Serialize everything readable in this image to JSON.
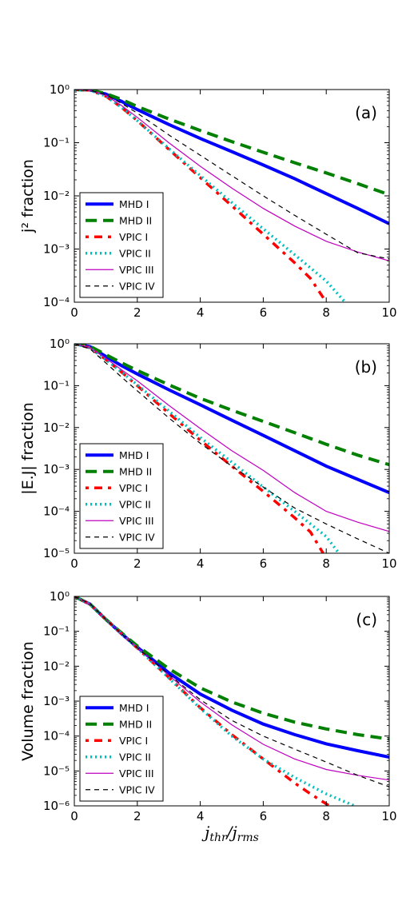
{
  "chart_data": [
    {
      "type": "line",
      "panel_label": "(a)",
      "ylabel": "j² fraction",
      "xlabel": "",
      "xlim": [
        0,
        10
      ],
      "ylim_log10": [
        -4,
        0
      ],
      "y_scale": "log",
      "x_ticks": [
        "0",
        "2",
        "4",
        "6",
        "8",
        "10"
      ],
      "y_ticks": [
        "10⁻⁴",
        "10⁻³",
        "10⁻²",
        "10⁻¹",
        "10⁰"
      ],
      "legend_position": "lower-left",
      "series": [
        {
          "name": "MHD I",
          "color": "#0000ff",
          "style": "solid",
          "width": 4,
          "x": [
            0,
            0.5,
            1,
            1.5,
            2,
            3,
            4,
            5,
            6,
            7,
            8,
            9,
            10
          ],
          "y": [
            1,
            0.98,
            0.82,
            0.6,
            0.42,
            0.22,
            0.12,
            0.068,
            0.038,
            0.021,
            0.011,
            0.0058,
            0.003
          ]
        },
        {
          "name": "MHD II",
          "color": "#008000",
          "style": "dashed",
          "width": 4,
          "x": [
            0,
            0.5,
            1,
            1.5,
            2,
            3,
            4,
            5,
            6,
            7,
            8,
            9,
            10
          ],
          "y": [
            1,
            0.98,
            0.84,
            0.65,
            0.48,
            0.28,
            0.17,
            0.105,
            0.066,
            0.042,
            0.027,
            0.017,
            0.0105
          ]
        },
        {
          "name": "VPIC I",
          "color": "#ff0000",
          "style": "dashdot",
          "width": 3.5,
          "x": [
            0,
            0.5,
            1,
            1.5,
            2,
            3,
            4,
            5,
            6,
            7,
            7.5,
            8
          ],
          "y": [
            1,
            0.97,
            0.75,
            0.46,
            0.26,
            0.075,
            0.022,
            0.0065,
            0.0019,
            0.00055,
            0.00028,
            0.0001
          ]
        },
        {
          "name": "VPIC II",
          "color": "#00bfbf",
          "style": "dotted",
          "width": 3.5,
          "x": [
            0,
            0.5,
            1,
            1.5,
            2,
            3,
            4,
            5,
            6,
            7,
            8,
            8.6
          ],
          "y": [
            1,
            0.97,
            0.75,
            0.46,
            0.26,
            0.078,
            0.024,
            0.0075,
            0.0024,
            0.00078,
            0.00025,
            0.0001
          ]
        },
        {
          "name": "VPIC III",
          "color": "#bf00bf",
          "style": "solid",
          "width": 1.2,
          "x": [
            0,
            0.5,
            1,
            1.5,
            2,
            3,
            4,
            5,
            6,
            7,
            8,
            9,
            10
          ],
          "y": [
            1,
            0.97,
            0.78,
            0.5,
            0.3,
            0.1,
            0.036,
            0.014,
            0.0058,
            0.0027,
            0.0014,
            0.00088,
            0.0006
          ]
        },
        {
          "name": "VPIC IV",
          "color": "#000000",
          "style": "dashed-thin",
          "width": 1.2,
          "x": [
            0,
            0.5,
            1,
            1.5,
            2,
            3,
            4,
            5,
            6,
            7,
            8,
            9,
            10
          ],
          "y": [
            1,
            0.97,
            0.8,
            0.55,
            0.36,
            0.14,
            0.058,
            0.024,
            0.01,
            0.0043,
            0.0019,
            0.00085,
            0.00065
          ]
        }
      ]
    },
    {
      "type": "line",
      "panel_label": "(b)",
      "ylabel": "|E.J| fraction",
      "xlabel": "",
      "xlim": [
        0,
        10
      ],
      "ylim_log10": [
        -5,
        0
      ],
      "y_scale": "log",
      "x_ticks": [
        "0",
        "2",
        "4",
        "6",
        "8",
        "10"
      ],
      "y_ticks": [
        "10⁻⁵",
        "10⁻⁴",
        "10⁻³",
        "10⁻²",
        "10⁻¹",
        "10⁰"
      ],
      "legend_position": "lower-left",
      "series": [
        {
          "name": "MHD I",
          "color": "#0000ff",
          "style": "solid",
          "width": 4,
          "x": [
            0,
            0.5,
            1,
            1.5,
            2,
            3,
            4,
            5,
            6,
            7,
            8,
            9,
            10
          ],
          "y": [
            1,
            0.85,
            0.5,
            0.3,
            0.19,
            0.08,
            0.035,
            0.015,
            0.0065,
            0.0028,
            0.0012,
            0.00058,
            0.00028
          ]
        },
        {
          "name": "MHD II",
          "color": "#008000",
          "style": "dashed",
          "width": 4,
          "x": [
            0,
            0.5,
            1,
            1.5,
            2,
            3,
            4,
            5,
            6,
            7,
            8,
            9,
            10
          ],
          "y": [
            1,
            0.87,
            0.55,
            0.35,
            0.23,
            0.105,
            0.05,
            0.026,
            0.014,
            0.0075,
            0.004,
            0.0022,
            0.0013
          ]
        },
        {
          "name": "VPIC I",
          "color": "#ff0000",
          "style": "dashdot",
          "width": 3.5,
          "x": [
            0,
            0.5,
            1,
            1.5,
            2,
            3,
            4,
            5,
            6,
            7,
            7.5,
            7.9
          ],
          "y": [
            1,
            0.8,
            0.42,
            0.21,
            0.1,
            0.022,
            0.005,
            0.0012,
            0.0003,
            7e-05,
            3.2e-05,
            1e-05
          ]
        },
        {
          "name": "VPIC II",
          "color": "#00bfbf",
          "style": "dotted",
          "width": 3.5,
          "x": [
            0,
            0.5,
            1,
            1.5,
            2,
            3,
            4,
            5,
            6,
            7,
            8,
            8.4
          ],
          "y": [
            1,
            0.8,
            0.42,
            0.21,
            0.105,
            0.025,
            0.0058,
            0.0015,
            0.00038,
            0.0001,
            2.5e-05,
            1e-05
          ]
        },
        {
          "name": "VPIC III",
          "color": "#bf00bf",
          "style": "solid",
          "width": 1.2,
          "x": [
            0,
            0.5,
            1,
            1.5,
            2,
            3,
            4,
            5,
            6,
            7,
            8,
            9,
            10
          ],
          "y": [
            1,
            0.8,
            0.45,
            0.24,
            0.13,
            0.034,
            0.0095,
            0.0028,
            0.00095,
            0.00028,
            0.0001,
            5.5e-05,
            3.3e-05
          ]
        },
        {
          "name": "VPIC IV",
          "color": "#000000",
          "style": "dashed-thin",
          "width": 1.2,
          "x": [
            0,
            0.5,
            1,
            1.5,
            2,
            3,
            4,
            5,
            6,
            7,
            8,
            9,
            10
          ],
          "y": [
            1,
            0.75,
            0.35,
            0.16,
            0.075,
            0.017,
            0.0042,
            0.0012,
            0.00038,
            0.00012,
            5e-05,
            2.2e-05,
            1e-05
          ]
        }
      ]
    },
    {
      "type": "line",
      "panel_label": "(c)",
      "ylabel": "Volume fraction",
      "xlabel": "j_thr/j_rms",
      "xlabel_main": "j",
      "xlabel_sub1": "thr",
      "xlabel_sub2": "rms",
      "xlim": [
        0,
        10
      ],
      "ylim_log10": [
        -6,
        0
      ],
      "y_scale": "log",
      "x_ticks": [
        "0",
        "2",
        "4",
        "6",
        "8",
        "10"
      ],
      "y_ticks": [
        "10⁻⁶",
        "10⁻⁵",
        "10⁻⁴",
        "10⁻³",
        "10⁻²",
        "10⁻¹",
        "10⁰"
      ],
      "legend_position": "lower-left",
      "series": [
        {
          "name": "MHD I",
          "color": "#0000ff",
          "style": "solid",
          "width": 4,
          "x": [
            0,
            0.5,
            1,
            1.5,
            2,
            3,
            4,
            5,
            6,
            7,
            8,
            9,
            10
          ],
          "y": [
            1,
            0.6,
            0.22,
            0.085,
            0.035,
            0.0065,
            0.0016,
            0.00055,
            0.00022,
            0.00011,
            6e-05,
            3.8e-05,
            2.5e-05
          ]
        },
        {
          "name": "MHD II",
          "color": "#008000",
          "style": "dashed",
          "width": 4,
          "x": [
            0,
            0.5,
            1,
            1.5,
            2,
            3,
            4,
            5,
            6,
            7,
            8,
            9,
            10
          ],
          "y": [
            1,
            0.6,
            0.22,
            0.09,
            0.038,
            0.0085,
            0.0024,
            0.00095,
            0.00045,
            0.00025,
            0.00016,
            0.00011,
            8.2e-05
          ]
        },
        {
          "name": "VPIC I",
          "color": "#ff0000",
          "style": "dashdot",
          "width": 3.5,
          "x": [
            0,
            0.5,
            1,
            1.5,
            2,
            3,
            4,
            5,
            6,
            7,
            7.5,
            8.1
          ],
          "y": [
            1,
            0.6,
            0.22,
            0.085,
            0.033,
            0.0048,
            0.00065,
            0.00011,
            2.2e-05,
            4.5e-06,
            2.2e-06,
            1e-06
          ]
        },
        {
          "name": "VPIC II",
          "color": "#00bfbf",
          "style": "dotted",
          "width": 3.5,
          "x": [
            0,
            0.5,
            1,
            1.5,
            2,
            3,
            4,
            5,
            6,
            7,
            8,
            8.9
          ],
          "y": [
            1,
            0.6,
            0.22,
            0.085,
            0.033,
            0.0046,
            0.00062,
            0.0001,
            2.2e-05,
            6.5e-06,
            2.2e-06,
            1e-06
          ]
        },
        {
          "name": "VPIC III",
          "color": "#bf00bf",
          "style": "solid",
          "width": 1.2,
          "x": [
            0,
            0.5,
            1,
            1.5,
            2,
            3,
            4,
            5,
            6,
            7,
            8,
            9,
            10
          ],
          "y": [
            1,
            0.6,
            0.22,
            0.085,
            0.034,
            0.0055,
            0.00095,
            0.00021,
            5.8e-05,
            2.2e-05,
            1.1e-05,
            7.5e-06,
            5.5e-06
          ]
        },
        {
          "name": "VPIC IV",
          "color": "#000000",
          "style": "dashed-thin",
          "width": 1.2,
          "x": [
            0,
            0.5,
            1,
            1.5,
            2,
            3,
            4,
            5,
            6,
            7,
            8,
            9,
            10
          ],
          "y": [
            1,
            0.62,
            0.22,
            0.085,
            0.034,
            0.0058,
            0.0011,
            0.00028,
            0.0001,
            4.2e-05,
            1.8e-05,
            7.5e-06,
            3.5e-06
          ]
        }
      ]
    }
  ]
}
